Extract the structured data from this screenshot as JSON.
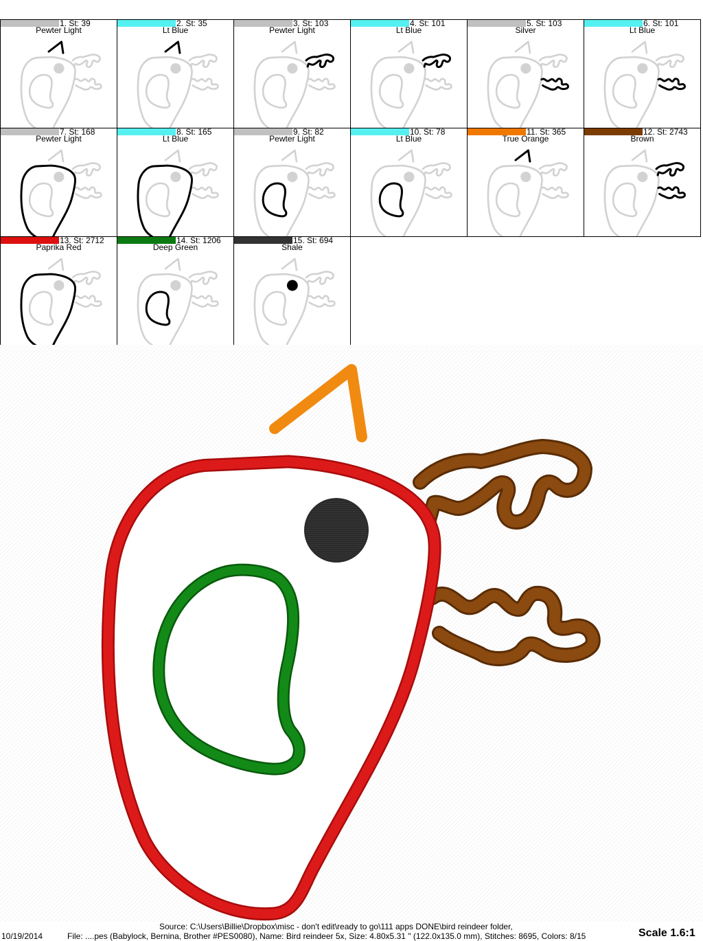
{
  "steps": [
    {
      "label": "1. St: 39",
      "color_name": "Pewter Light",
      "color": "#c0c0c0",
      "highlight": "beak"
    },
    {
      "label": "2. St: 35",
      "color_name": "Lt Blue",
      "color": "#55f0f0",
      "highlight": "beak"
    },
    {
      "label": "3. St: 103",
      "color_name": "Pewter Light",
      "color": "#c0c0c0",
      "highlight": "antler-top"
    },
    {
      "label": "4. St: 101",
      "color_name": "Lt Blue",
      "color": "#55f0f0",
      "highlight": "antler-top"
    },
    {
      "label": "5. St: 103",
      "color_name": "Silver",
      "color": "#c0c0c0",
      "highlight": "antler-bottom"
    },
    {
      "label": "6. St: 101",
      "color_name": "Lt Blue",
      "color": "#55f0f0",
      "highlight": "antler-bottom"
    },
    {
      "label": "7. St: 168",
      "color_name": "Pewter Light",
      "color": "#c0c0c0",
      "highlight": "body"
    },
    {
      "label": "8. St: 165",
      "color_name": "Lt Blue",
      "color": "#55f0f0",
      "highlight": "body"
    },
    {
      "label": "9. St: 82",
      "color_name": "Pewter Light",
      "color": "#c0c0c0",
      "highlight": "wing"
    },
    {
      "label": "10. St: 78",
      "color_name": "Lt Blue",
      "color": "#55f0f0",
      "highlight": "wing"
    },
    {
      "label": "11. St: 365",
      "color_name": "True Orange",
      "color": "#f07800",
      "highlight": "beak-satin"
    },
    {
      "label": "12. St: 2743",
      "color_name": "Brown",
      "color": "#7a3c00",
      "highlight": "antlers-satin"
    },
    {
      "label": "13. St: 2712",
      "color_name": "Paprika Red",
      "color": "#dd0f0f",
      "highlight": "body-satin"
    },
    {
      "label": "14. St: 1206",
      "color_name": "Deep Green",
      "color": "#0c7a12",
      "highlight": "wing-satin"
    },
    {
      "label": "15. St: 694",
      "color_name": "Shale",
      "color": "#333333",
      "highlight": "eye"
    }
  ],
  "footer": {
    "source": "Source: C:\\Users\\Billie\\Dropbox\\misc - don't edit\\ready to go\\111 apps DONE\\bird reindeer folder,",
    "date": "10/19/2014",
    "file_info": "File: ....pes (Babylock, Bernina, Brother #PES0080), Name: Bird reindeer 5x, Size: 4.80x5.31 \" (122.0x135.0 mm), Stitches: 8695, Colors: 8/15",
    "scale": "Scale 1.6:1"
  },
  "colors": {
    "ghost": "#d2d2d2",
    "beak": "#f08a10",
    "antler": "#8a4a10",
    "body": "#dd1a1a",
    "wing": "#138a18",
    "eye": "#333333"
  }
}
